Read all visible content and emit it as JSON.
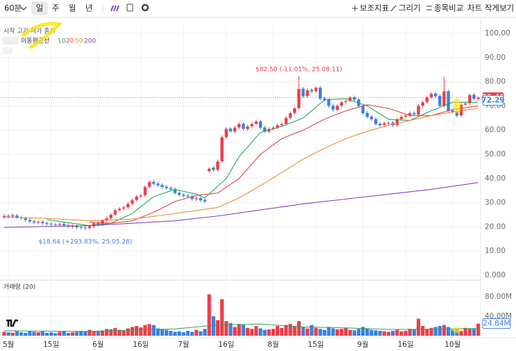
{
  "toolbar": {
    "interval": "60분",
    "periods": [
      "일",
      "주",
      "월",
      "년"
    ],
    "actions": [
      "보조지표",
      "그리기",
      "종목비교",
      "차트 작게보기"
    ]
  },
  "legend": {
    "ohlc": "시작 고가 저가 종가",
    "ma": "이동평균선"
  },
  "chart_data": [
    {
      "type": "candlestick",
      "up_color": "#ec3d4a",
      "down_color": "#3c80e0",
      "ylim": [
        0,
        100
      ],
      "yticks": [
        {
          "value": 100,
          "label": "100.00"
        },
        {
          "value": 90,
          "label": "90.00"
        },
        {
          "value": 80,
          "label": "80.00"
        },
        {
          "value": 70,
          "label": "70.00"
        },
        {
          "value": 60,
          "label": "60.00"
        },
        {
          "value": 50,
          "label": "50.00"
        },
        {
          "value": 40,
          "label": "40.00"
        },
        {
          "value": 30,
          "label": "30.00"
        },
        {
          "value": 20,
          "label": "20.00"
        },
        {
          "value": 10,
          "label": "10.00"
        },
        {
          "value": 0,
          "label": "0.000"
        }
      ],
      "xticks": [
        {
          "value": 1,
          "label": "5월"
        },
        {
          "value": 11,
          "label": "15일"
        },
        {
          "value": 22,
          "label": "6월"
        },
        {
          "value": 32,
          "label": "16일"
        },
        {
          "value": 42,
          "label": "7월"
        },
        {
          "value": 52,
          "label": "16일"
        },
        {
          "value": 63,
          "label": "8월"
        },
        {
          "value": 73,
          "label": "15일"
        },
        {
          "value": 84,
          "label": "9월"
        },
        {
          "value": 94,
          "label": "16일"
        },
        {
          "value": 105,
          "label": "10월"
        }
      ],
      "grid": true,
      "open": [
        24.0,
        24.6,
        24.3,
        24.7,
        24.0,
        23.5,
        22.9,
        22.3,
        21.7,
        22.1,
        21.6,
        21.3,
        21.0,
        20.8,
        21.3,
        20.7,
        20.1,
        20.6,
        19.9,
        19.7,
        19.5,
        20.2,
        21.6,
        21.0,
        22.7,
        23.6,
        25.1,
        26.9,
        27.6,
        28.1,
        29.6,
        31.1,
        32.6,
        33.1,
        36.6,
        38.6,
        37.9,
        37.3,
        36.6,
        36.1,
        35.6,
        34.1,
        33.3,
        32.9,
        32.6,
        31.4,
        31.9,
        31.1,
        43.0,
        44.5,
        43.6,
        47.1,
        57.1,
        60.6,
        59.4,
        61.1,
        62.6,
        60.4,
        61.6,
        62.6,
        63.6,
        61.1,
        59.4,
        60.6,
        61.1,
        62.1,
        62.6,
        65.1,
        67.1,
        69.1,
        77.1,
        74.1,
        76.6,
        76.1,
        77.6,
        73.1,
        72.6,
        70.1,
        68.4,
        70.1,
        71.6,
        72.1,
        73.6,
        72.6,
        70.1,
        67.1,
        65.6,
        64.6,
        62.6,
        62.1,
        62.9,
        63.1,
        62.1,
        64.6,
        65.6,
        66.1,
        67.1,
        66.4,
        70.1,
        71.6,
        73.6,
        75.1,
        74.1,
        70.1,
        76.1,
        68.1,
        67.6,
        66.1,
        70.6,
        71.1,
        74.6,
        72.9
      ],
      "high": [
        25.2,
        25.3,
        25.5,
        25.4,
        24.7,
        24.2,
        23.6,
        23.0,
        22.7,
        22.8,
        22.3,
        22.0,
        21.6,
        21.8,
        22.0,
        21.4,
        21.2,
        21.3,
        20.6,
        20.3,
        20.9,
        22.2,
        22.3,
        23.3,
        24.2,
        25.7,
        27.5,
        28.2,
        28.7,
        30.2,
        31.7,
        33.2,
        33.7,
        37.2,
        39.2,
        39.5,
        38.6,
        38.0,
        37.3,
        36.8,
        36.3,
        34.8,
        34.0,
        33.6,
        33.3,
        32.5,
        32.6,
        31.8,
        44.7,
        45.2,
        47.8,
        57.8,
        61.2,
        61.3,
        61.8,
        63.2,
        63.3,
        62.2,
        63.2,
        64.2,
        64.3,
        61.8,
        61.2,
        61.7,
        62.7,
        63.2,
        65.7,
        67.7,
        69.7,
        82.5,
        77.8,
        77.2,
        77.3,
        78.2,
        78.3,
        73.8,
        73.3,
        70.8,
        70.7,
        72.2,
        72.7,
        74.2,
        74.3,
        73.3,
        70.8,
        67.8,
        66.3,
        65.3,
        63.3,
        63.5,
        63.7,
        63.8,
        65.2,
        66.2,
        66.7,
        67.7,
        67.8,
        70.7,
        72.2,
        74.2,
        75.7,
        75.8,
        74.8,
        82.0,
        76.8,
        68.8,
        68.3,
        71.2,
        71.7,
        75.2,
        75.3,
        74.0
      ],
      "low": [
        23.3,
        23.5,
        23.6,
        23.3,
        22.9,
        22.1,
        21.5,
        21.1,
        21.0,
        20.8,
        20.5,
        20.3,
        20.1,
        20.1,
        19.9,
        19.5,
        19.4,
        19.1,
        18.9,
        18.64,
        18.8,
        19.5,
        20.3,
        20.3,
        22.0,
        22.9,
        24.4,
        26.2,
        26.9,
        27.4,
        28.9,
        30.4,
        31.9,
        32.4,
        35.9,
        37.1,
        36.5,
        35.8,
        35.3,
        34.8,
        33.3,
        32.5,
        32.1,
        31.8,
        30.8,
        30.7,
        30.3,
        29.8,
        42.3,
        42.8,
        42.9,
        46.4,
        56.4,
        58.8,
        58.7,
        60.4,
        59.8,
        59.7,
        60.9,
        61.9,
        60.3,
        58.8,
        58.7,
        59.9,
        60.4,
        61.4,
        61.9,
        64.4,
        66.4,
        68.4,
        73.3,
        73.4,
        75.3,
        75.4,
        72.3,
        71.8,
        69.3,
        67.8,
        67.7,
        69.4,
        70.9,
        71.4,
        71.8,
        69.3,
        66.3,
        64.8,
        63.8,
        61.8,
        61.3,
        61.4,
        62.2,
        61.3,
        61.4,
        63.9,
        64.9,
        65.4,
        65.8,
        65.7,
        69.4,
        70.9,
        72.9,
        73.3,
        69.3,
        69.4,
        67.3,
        66.8,
        65.3,
        65.4,
        69.9,
        70.4,
        72.3,
        72.2
      ],
      "close": [
        24.5,
        24.2,
        24.8,
        24.0,
        23.6,
        22.8,
        22.2,
        21.8,
        22.0,
        21.5,
        21.2,
        21.0,
        20.8,
        21.2,
        20.6,
        20.2,
        20.5,
        19.8,
        19.6,
        19.5,
        20.2,
        21.5,
        21.0,
        22.6,
        23.5,
        25.0,
        26.8,
        27.5,
        28.0,
        29.5,
        31.0,
        32.5,
        33.0,
        36.5,
        38.5,
        37.8,
        37.2,
        36.5,
        36.0,
        35.5,
        34.0,
        33.2,
        32.8,
        32.5,
        31.5,
        31.8,
        31.0,
        30.5,
        44.0,
        43.5,
        47.0,
        57.0,
        60.5,
        59.5,
        61.0,
        62.5,
        60.5,
        61.5,
        62.5,
        63.5,
        61.0,
        59.5,
        60.5,
        61.0,
        62.0,
        62.5,
        65.0,
        67.0,
        69.0,
        77.0,
        74.0,
        76.5,
        76.0,
        77.5,
        73.0,
        72.5,
        70.0,
        68.5,
        70.0,
        71.5,
        72.0,
        73.5,
        72.5,
        70.0,
        67.0,
        65.5,
        64.5,
        62.5,
        62.0,
        62.8,
        63.0,
        62.0,
        64.5,
        65.5,
        66.0,
        67.0,
        66.5,
        70.0,
        71.5,
        73.5,
        75.0,
        74.0,
        70.0,
        76.0,
        68.0,
        67.5,
        66.0,
        70.5,
        71.0,
        74.5,
        73.0,
        73.41
      ],
      "ma_series": [
        {
          "name": "10",
          "color": "#26a65b",
          "x": [
            10,
            20,
            25,
            30,
            35,
            40,
            45,
            47,
            52,
            55,
            60,
            65,
            70,
            75,
            80,
            85,
            90,
            95,
            100,
            105,
            111
          ],
          "values": [
            23,
            20.5,
            21.5,
            25.5,
            32.5,
            35.5,
            33.5,
            32,
            40,
            49,
            59,
            61.5,
            65,
            72.5,
            73,
            70,
            64.5,
            64,
            68,
            71.5,
            71.5
          ]
        },
        {
          "name": "20",
          "color": "#e5414b",
          "x": [
            20,
            25,
            30,
            35,
            40,
            45,
            50,
            55,
            60,
            65,
            70,
            75,
            80,
            85,
            90,
            95,
            100,
            105,
            111
          ],
          "values": [
            22,
            21.5,
            22.5,
            26,
            30.5,
            33,
            34,
            40,
            50,
            56.5,
            60,
            64.5,
            68,
            70.5,
            69,
            66,
            66,
            68.5,
            70
          ]
        },
        {
          "name": "50",
          "color": "#f28a2e",
          "x": [
            0,
            10,
            20,
            30,
            40,
            50,
            55,
            60,
            65,
            70,
            75,
            80,
            85,
            90,
            95,
            100,
            105,
            111
          ],
          "values": [
            24,
            23.5,
            22.5,
            23.2,
            25.5,
            28,
            32,
            37,
            42.5,
            48,
            52.5,
            56.5,
            59.5,
            62,
            64,
            66,
            67.5,
            69
          ]
        },
        {
          "name": "200",
          "color": "#8e3fb8",
          "x": [
            0,
            20,
            40,
            50,
            60,
            70,
            80,
            90,
            100,
            111
          ],
          "values": [
            19.8,
            20.5,
            22.5,
            24.5,
            27,
            29.5,
            31.5,
            33.5,
            35.5,
            38.3
          ]
        }
      ],
      "high_label": "$82.50 (-11.01%, 25.08.11)",
      "low_label": "$18.64 (+293.83%, 25.05.28)",
      "price_tags": [
        {
          "value": 73.41,
          "color": "#e5414b"
        },
        {
          "value": 72.29,
          "color": "#3c80e0"
        }
      ]
    },
    {
      "type": "bar",
      "title": "거래량 (20)",
      "ylim": [
        0,
        100
      ],
      "yticks": [
        {
          "value": 80,
          "label": "80.00M"
        },
        {
          "value": 40,
          "label": "40.00M"
        }
      ],
      "values": [
        8,
        7,
        6,
        9,
        7,
        6,
        10,
        8,
        7,
        9,
        6,
        7,
        5,
        8,
        9,
        6,
        7,
        8,
        10,
        9,
        12,
        10,
        9,
        11,
        14,
        13,
        16,
        12,
        11,
        15,
        18,
        20,
        17,
        22,
        24,
        22,
        15,
        14,
        12,
        10,
        8,
        9,
        7,
        10,
        8,
        12,
        9,
        14,
        85,
        40,
        32,
        75,
        30,
        26,
        18,
        24,
        22,
        16,
        14,
        20,
        15,
        12,
        13,
        14,
        20,
        16,
        22,
        24,
        20,
        30,
        18,
        15,
        22,
        16,
        14,
        12,
        18,
        15,
        13,
        14,
        16,
        12,
        11,
        14,
        18,
        15,
        12,
        11,
        10,
        9,
        8,
        10,
        12,
        9,
        10,
        14,
        13,
        35,
        20,
        14,
        16,
        18,
        20,
        22,
        18,
        12,
        14,
        10,
        16,
        15,
        14,
        24.84
      ],
      "last_label": {
        "value": 24.84,
        "label": "24.84M"
      },
      "ma": {
        "color": "#26a65b",
        "x": [
          0,
          20,
          40,
          50,
          60,
          70,
          80,
          90,
          100,
          111
        ],
        "values": [
          10,
          9,
          14,
          22,
          24,
          18,
          16,
          13,
          13,
          15
        ]
      }
    }
  ]
}
